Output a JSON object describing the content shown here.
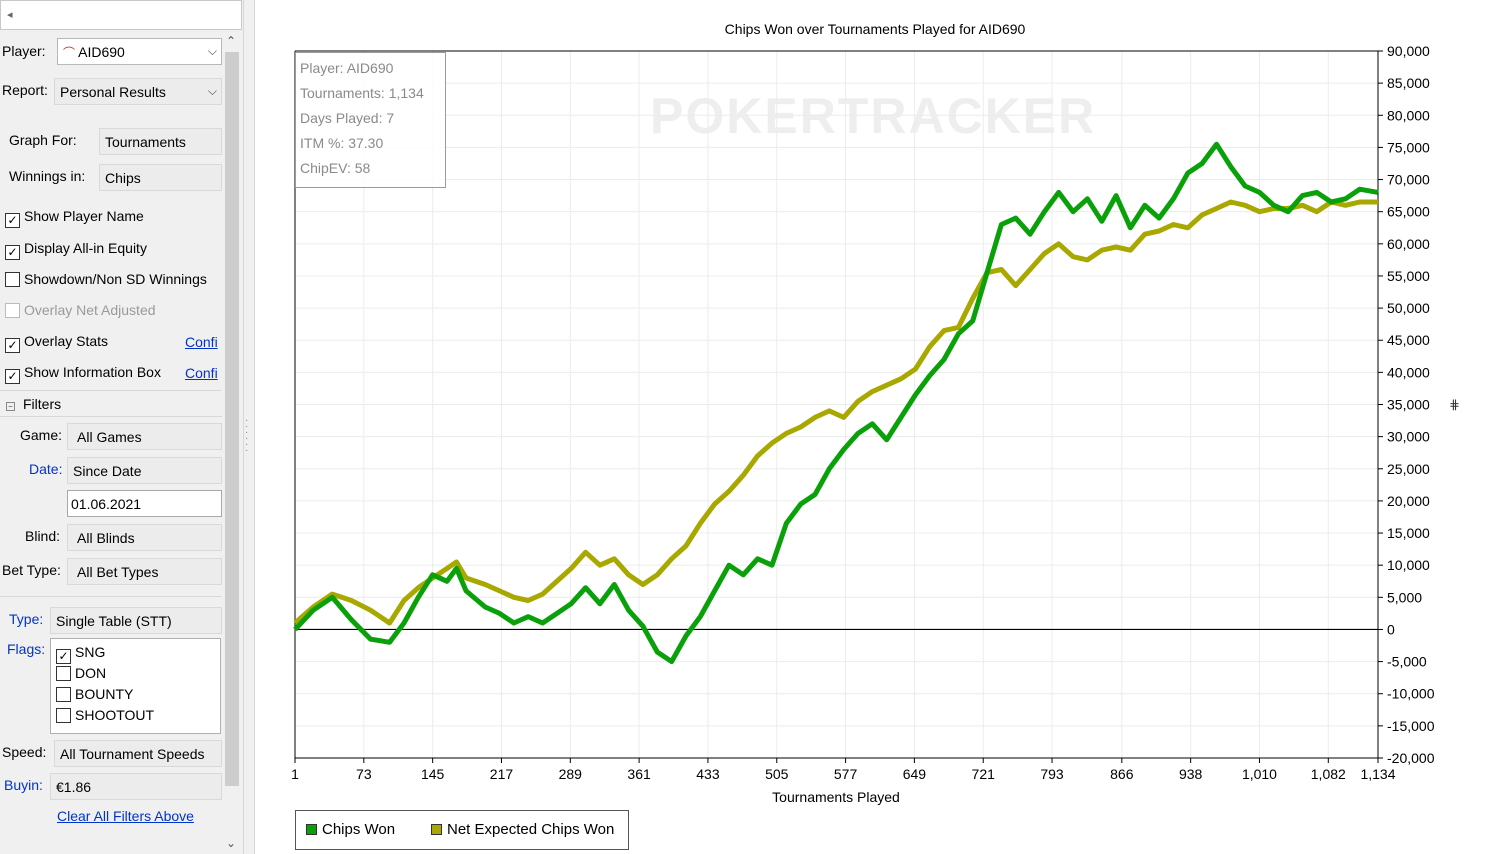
{
  "sidebar": {
    "player_label": "Player:",
    "player_value": "AID690",
    "report_label": "Report:",
    "report_value": "Personal Results",
    "graph_for_label": "Graph For:",
    "graph_for_value": "Tournaments",
    "winnings_label": "Winnings in:",
    "winnings_value": "Chips",
    "checkboxes": [
      {
        "label": "Show Player Name",
        "checked": true,
        "enabled": true
      },
      {
        "label": "Display All-in Equity",
        "checked": true,
        "enabled": true
      },
      {
        "label": "Showdown/Non SD Winnings",
        "checked": false,
        "enabled": true
      },
      {
        "label": "Overlay Net Adjusted",
        "checked": false,
        "enabled": false
      },
      {
        "label": "Overlay Stats",
        "checked": true,
        "enabled": true
      },
      {
        "label": "Show Information Box",
        "checked": true,
        "enabled": true
      }
    ],
    "config_link_1": "Confi",
    "config_link_2": "Confi",
    "filters_label": "Filters",
    "game_label": "Game:",
    "game_value": "All Games",
    "date_label": "Date:",
    "date_value": "Since Date",
    "date_input": "01.06.2021",
    "blind_label": "Blind:",
    "blind_value": "All Blinds",
    "bet_type_label": "Bet Type:",
    "bet_type_value": "All Bet Types",
    "type_label": "Type:",
    "type_value": "Single Table (STT)",
    "flags_label": "Flags:",
    "flags": [
      {
        "label": "SNG",
        "checked": true
      },
      {
        "label": "DON",
        "checked": false
      },
      {
        "label": "BOUNTY",
        "checked": false
      },
      {
        "label": "SHOOTOUT",
        "checked": false
      }
    ],
    "speed_label": "Speed:",
    "speed_value": "All Tournament Speeds",
    "buyin_label": "Buyin:",
    "buyin_value": "€1.86",
    "clear_filters": "Clear All Filters Above"
  },
  "info_box": {
    "player": "Player: AID690",
    "tournaments": "Tournaments: 1,134",
    "days": "Days Played: 7",
    "itm": "ITM %: 37.30",
    "chipev": "ChipEV: 58"
  },
  "watermark": "POKERTRACKER",
  "colors": {
    "chips_won": "#0aa00a",
    "net_expected": "#a8a800",
    "link": "#0033cc"
  },
  "chart_data": {
    "type": "line",
    "title": "Chips Won over Tournaments Played for AID690",
    "xlabel": "Tournaments Played",
    "ylabel": "",
    "xlim": [
      1,
      1134
    ],
    "ylim": [
      -20000,
      90000
    ],
    "x_ticks": [
      "1",
      "73",
      "145",
      "217",
      "289",
      "361",
      "433",
      "505",
      "577",
      "649",
      "721",
      "793",
      "866",
      "938",
      "1,010",
      "1,082",
      "1,134"
    ],
    "y_ticks": [
      "90,000",
      "85,000",
      "80,000",
      "75,000",
      "70,000",
      "65,000",
      "60,000",
      "55,000",
      "50,000",
      "45,000",
      "40,000",
      "35,000",
      "30,000",
      "25,000",
      "20,000",
      "15,000",
      "10,000",
      "5,000",
      "0",
      "-5,000",
      "-10,000",
      "-15,000",
      "-20,000"
    ],
    "legend_position": "bottom-left",
    "series": [
      {
        "name": "Chips Won",
        "x": [
          1,
          20,
          40,
          60,
          80,
          100,
          115,
          130,
          145,
          160,
          170,
          180,
          200,
          215,
          230,
          245,
          260,
          275,
          290,
          305,
          320,
          335,
          350,
          365,
          380,
          395,
          410,
          425,
          440,
          455,
          470,
          485,
          500,
          515,
          530,
          545,
          560,
          575,
          590,
          605,
          620,
          635,
          650,
          665,
          680,
          695,
          710,
          725,
          740,
          755,
          770,
          785,
          800,
          815,
          830,
          845,
          860,
          875,
          890,
          905,
          920,
          935,
          950,
          965,
          980,
          995,
          1010,
          1025,
          1040,
          1055,
          1070,
          1085,
          1100,
          1115,
          1134
        ],
        "values": [
          0,
          3000,
          5000,
          1500,
          -1500,
          -2000,
          1000,
          5000,
          8500,
          7500,
          9500,
          6000,
          3500,
          2500,
          1000,
          2000,
          1000,
          2500,
          4000,
          6500,
          4000,
          7000,
          3000,
          500,
          -3500,
          -5000,
          -1000,
          2000,
          6000,
          10000,
          8500,
          11000,
          10000,
          16500,
          19500,
          21000,
          25000,
          28000,
          30500,
          32000,
          29500,
          33000,
          36500,
          39500,
          42000,
          46000,
          48000,
          55500,
          63000,
          64000,
          61500,
          65000,
          68000,
          65000,
          67000,
          63500,
          67500,
          62500,
          66000,
          64000,
          67000,
          71000,
          72500,
          75500,
          72000,
          69000,
          68000,
          66000,
          65000,
          67500,
          68000,
          66500,
          67000,
          68500,
          68000
        ]
      },
      {
        "name": "Net Expected Chips Won",
        "x": [
          1,
          20,
          40,
          60,
          80,
          100,
          115,
          130,
          145,
          160,
          170,
          180,
          200,
          215,
          230,
          245,
          260,
          275,
          290,
          305,
          320,
          335,
          350,
          365,
          380,
          395,
          410,
          425,
          440,
          455,
          470,
          485,
          500,
          515,
          530,
          545,
          560,
          575,
          590,
          605,
          620,
          635,
          650,
          665,
          680,
          695,
          710,
          725,
          740,
          755,
          770,
          785,
          800,
          815,
          830,
          845,
          860,
          875,
          890,
          905,
          920,
          935,
          950,
          965,
          980,
          995,
          1010,
          1025,
          1040,
          1055,
          1070,
          1085,
          1100,
          1115,
          1134
        ],
        "values": [
          1000,
          3500,
          5500,
          4500,
          3000,
          1000,
          4500,
          6500,
          8000,
          9500,
          10500,
          8000,
          7000,
          6000,
          5000,
          4500,
          5500,
          7500,
          9500,
          12000,
          10000,
          11000,
          8500,
          7000,
          8500,
          11000,
          13000,
          16500,
          19500,
          21500,
          24000,
          27000,
          29000,
          30500,
          31500,
          33000,
          34000,
          33000,
          35500,
          37000,
          38000,
          39000,
          40500,
          44000,
          46500,
          47000,
          51500,
          55500,
          56000,
          53500,
          56000,
          58500,
          60000,
          58000,
          57500,
          59000,
          59500,
          59000,
          61500,
          62000,
          63000,
          62500,
          64500,
          65500,
          66500,
          66000,
          65000,
          65500,
          65500,
          66000,
          65000,
          66500,
          66000,
          66500,
          66500
        ]
      }
    ]
  }
}
